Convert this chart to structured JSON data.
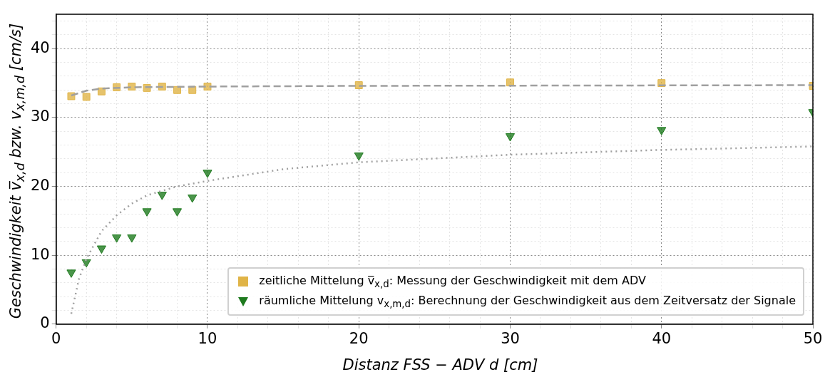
{
  "chart_data": {
    "type": "scatter",
    "xlabel": "Distanz FSS − ADV d [cm]",
    "ylabel": "Geschwindigkeit v̅$_{x,d}$ bzw. v$_{x,m,d}$ [cm/s]",
    "xlim": [
      0,
      50
    ],
    "ylim": [
      0,
      45
    ],
    "xticks": [
      0,
      {
        "value": 2,
        "label": null
      },
      {
        "value": 4,
        "label": null
      },
      {
        "value": 6,
        "label": null
      },
      {
        "value": 8,
        "label": null
      },
      10,
      {
        "value": 12,
        "label": null
      },
      {
        "value": 14,
        "label": null
      },
      {
        "value": 16,
        "label": null
      },
      {
        "value": 18,
        "label": null
      },
      20,
      {
        "value": 22,
        "label": null
      },
      {
        "value": 24,
        "label": null
      },
      {
        "value": 26,
        "label": null
      },
      {
        "value": 28,
        "label": null
      },
      30,
      {
        "value": 32,
        "label": null
      },
      {
        "value": 34,
        "label": null
      },
      {
        "value": 36,
        "label": null
      },
      {
        "value": 38,
        "label": null
      },
      40,
      {
        "value": 42,
        "label": null
      },
      {
        "value": 44,
        "label": null
      },
      {
        "value": 46,
        "label": null
      },
      {
        "value": 48,
        "label": null
      },
      50
    ],
    "yticks": [
      0,
      {
        "value": 2,
        "label": null
      },
      {
        "value": 4,
        "label": null
      },
      {
        "value": 6,
        "label": null
      },
      {
        "value": 8,
        "label": null
      },
      10,
      {
        "value": 12,
        "label": null
      },
      {
        "value": 14,
        "label": null
      },
      {
        "value": 16,
        "label": null
      },
      {
        "value": 18,
        "label": null
      },
      20,
      {
        "value": 22,
        "label": null
      },
      {
        "value": 24,
        "label": null
      },
      {
        "value": 26,
        "label": null
      },
      {
        "value": 28,
        "label": null
      },
      30,
      {
        "value": 32,
        "label": null
      },
      {
        "value": 34,
        "label": null
      },
      {
        "value": 36,
        "label": null
      },
      {
        "value": 38,
        "label": null
      },
      40,
      {
        "value": 42,
        "label": null
      },
      {
        "value": 44,
        "label": null
      }
    ],
    "grid": true,
    "legend": "bottom right",
    "series": [
      {
        "type": "line",
        "color": "#a0a0a0",
        "line_style": "dashed",
        "marker": "none",
        "x": [
          1,
          2,
          3,
          5,
          10,
          20,
          50
        ],
        "values": [
          33.2,
          33.9,
          34.2,
          34.4,
          34.5,
          34.6,
          34.7
        ]
      },
      {
        "type": "line",
        "color": "#a0a0a0",
        "line_style": "dotted",
        "marker": "none",
        "x": [
          1,
          1.5,
          2,
          3,
          4,
          5,
          6,
          8,
          10,
          15,
          20,
          30,
          40,
          50
        ],
        "values": [
          1.5,
          6.5,
          9.5,
          13.5,
          15.8,
          17.5,
          18.7,
          20,
          20.8,
          22.5,
          23.5,
          24.6,
          25.3,
          25.8
        ]
      },
      {
        "type": "scatter",
        "name": "zeitliche Mittelung v̅$_{x,d}$: Messung der Geschwindigkeit mit dem ADV",
        "color": "#e0b447",
        "marker": "square",
        "x": [
          1,
          2,
          3,
          4,
          5,
          6,
          7,
          8,
          9,
          10,
          20,
          30,
          40,
          50
        ],
        "values": [
          33.1,
          33.0,
          33.8,
          34.4,
          34.5,
          34.3,
          34.5,
          34.0,
          34.0,
          34.5,
          34.7,
          35.1,
          35.0,
          34.6
        ]
      },
      {
        "type": "scatter",
        "name": "räumliche Mittelung v$_{x,m,d}$: Berechnung der Geschwindigkeit aus dem Zeitversatz der Signale",
        "color": "#1e7a1e",
        "marker": "triangle",
        "x": [
          1,
          2,
          3,
          4,
          5,
          6,
          7,
          8,
          9,
          10,
          20,
          30,
          40,
          50
        ],
        "values": [
          7.5,
          9.0,
          11.0,
          12.6,
          12.6,
          16.4,
          18.8,
          16.4,
          18.4,
          22.0,
          24.5,
          27.3,
          28.2,
          30.8
        ]
      }
    ]
  }
}
